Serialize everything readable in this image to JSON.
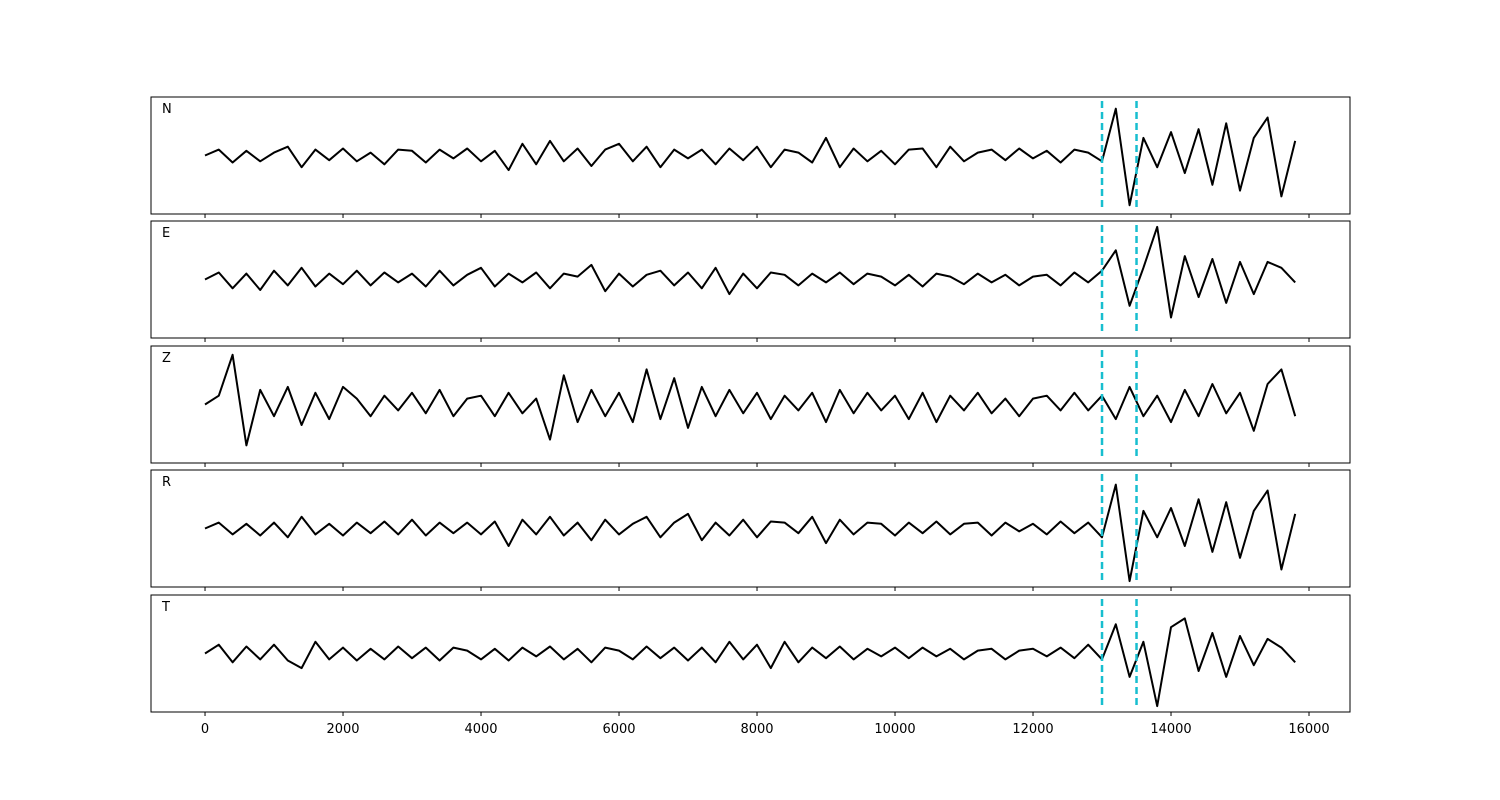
{
  "chart_data": [
    {
      "type": "line",
      "label": "N",
      "color": "#000000",
      "x": [
        0,
        200,
        400,
        600,
        800,
        1000,
        1200,
        1400,
        1600,
        1800,
        2000,
        2200,
        2400,
        2600,
        2800,
        3000,
        3200,
        3400,
        3600,
        3800,
        4000,
        4200,
        4400,
        4600,
        4800,
        5000,
        5200,
        5400,
        5600,
        5800,
        6000,
        6200,
        6400,
        6600,
        6800,
        7000,
        7200,
        7400,
        7600,
        7800,
        8000,
        8200,
        8400,
        8600,
        8800,
        9000,
        9200,
        9400,
        9600,
        9800,
        10000,
        10200,
        10400,
        10600,
        10800,
        11000,
        11200,
        11400,
        11600,
        11800,
        12000,
        12200,
        12400,
        12600,
        12800,
        13000,
        13200,
        13400,
        13600,
        13800,
        14000,
        14200,
        14400,
        14600,
        14800,
        15000,
        15200,
        15400,
        15600,
        15800
      ],
      "values": [
        0.0,
        0.1,
        -0.12,
        0.08,
        -0.1,
        0.05,
        0.15,
        -0.2,
        0.1,
        -0.08,
        0.12,
        -0.1,
        0.05,
        -0.15,
        0.1,
        0.08,
        -0.12,
        0.1,
        -0.05,
        0.12,
        -0.1,
        0.08,
        -0.25,
        0.2,
        -0.15,
        0.25,
        -0.1,
        0.12,
        -0.18,
        0.1,
        0.2,
        -0.1,
        0.15,
        -0.2,
        0.1,
        -0.05,
        0.1,
        -0.15,
        0.12,
        -0.08,
        0.15,
        -0.2,
        0.1,
        0.05,
        -0.12,
        0.3,
        -0.2,
        0.12,
        -0.1,
        0.08,
        -0.15,
        0.1,
        0.12,
        -0.2,
        0.15,
        -0.1,
        0.05,
        0.1,
        -0.08,
        0.12,
        -0.05,
        0.08,
        -0.12,
        0.1,
        0.05,
        -0.1,
        0.8,
        -0.85,
        0.3,
        -0.2,
        0.4,
        -0.3,
        0.45,
        -0.5,
        0.55,
        -0.6,
        0.3,
        0.65,
        -0.7,
        0.25
      ],
      "xlim": [
        -783,
        16594
      ],
      "ylim": [
        -1,
        1
      ],
      "xticks": [
        0,
        2000,
        4000,
        6000,
        8000,
        10000,
        12000,
        14000,
        16000
      ],
      "markers": [
        13000,
        13500
      ],
      "marker_color": "#17becf"
    },
    {
      "type": "line",
      "label": "E",
      "color": "#000000",
      "x": [
        0,
        200,
        400,
        600,
        800,
        1000,
        1200,
        1400,
        1600,
        1800,
        2000,
        2200,
        2400,
        2600,
        2800,
        3000,
        3200,
        3400,
        3600,
        3800,
        4000,
        4200,
        4400,
        4600,
        4800,
        5000,
        5200,
        5400,
        5600,
        5800,
        6000,
        6200,
        6400,
        6600,
        6800,
        7000,
        7200,
        7400,
        7600,
        7800,
        8000,
        8200,
        8400,
        8600,
        8800,
        9000,
        9200,
        9400,
        9600,
        9800,
        10000,
        10200,
        10400,
        10600,
        10800,
        11000,
        11200,
        11400,
        11600,
        11800,
        12000,
        12200,
        12400,
        12600,
        12800,
        13000,
        13200,
        13400,
        13600,
        13800,
        14000,
        14200,
        14400,
        14600,
        14800,
        15000,
        15200,
        15400,
        15600,
        15800
      ],
      "values": [
        0.0,
        0.12,
        -0.15,
        0.1,
        -0.18,
        0.15,
        -0.1,
        0.2,
        -0.12,
        0.1,
        -0.08,
        0.15,
        -0.1,
        0.12,
        -0.05,
        0.1,
        -0.12,
        0.15,
        -0.1,
        0.08,
        0.2,
        -0.12,
        0.1,
        -0.05,
        0.12,
        -0.15,
        0.1,
        0.05,
        0.25,
        -0.2,
        0.1,
        -0.12,
        0.08,
        0.15,
        -0.1,
        0.12,
        -0.15,
        0.2,
        -0.25,
        0.1,
        -0.15,
        0.12,
        0.08,
        -0.1,
        0.1,
        -0.05,
        0.12,
        -0.08,
        0.1,
        0.05,
        -0.1,
        0.08,
        -0.12,
        0.1,
        0.05,
        -0.08,
        0.1,
        -0.05,
        0.08,
        -0.1,
        0.05,
        0.08,
        -0.1,
        0.12,
        -0.05,
        0.15,
        0.5,
        -0.45,
        0.2,
        0.9,
        -0.65,
        0.4,
        -0.3,
        0.35,
        -0.4,
        0.3,
        -0.25,
        0.3,
        0.2,
        -0.05
      ],
      "xlim": [
        -783,
        16594
      ],
      "ylim": [
        -1,
        1
      ],
      "xticks": [
        0,
        2000,
        4000,
        6000,
        8000,
        10000,
        12000,
        14000,
        16000
      ],
      "markers": [
        13000,
        13500
      ],
      "marker_color": "#17becf"
    },
    {
      "type": "line",
      "label": "Z",
      "color": "#000000",
      "x": [
        0,
        200,
        400,
        600,
        800,
        1000,
        1200,
        1400,
        1600,
        1800,
        2000,
        2200,
        2400,
        2600,
        2800,
        3000,
        3200,
        3400,
        3600,
        3800,
        4000,
        4200,
        4400,
        4600,
        4800,
        5000,
        5200,
        5400,
        5600,
        5800,
        6000,
        6200,
        6400,
        6600,
        6800,
        7000,
        7200,
        7400,
        7600,
        7800,
        8000,
        8200,
        8400,
        8600,
        8800,
        9000,
        9200,
        9400,
        9600,
        9800,
        10000,
        10200,
        10400,
        10600,
        10800,
        11000,
        11200,
        11400,
        11600,
        11800,
        12000,
        12200,
        12400,
        12600,
        12800,
        13000,
        13200,
        13400,
        13600,
        13800,
        14000,
        14200,
        14400,
        14600,
        14800,
        15000,
        15200,
        15400,
        15600,
        15800
      ],
      "values": [
        0.0,
        0.15,
        0.85,
        -0.7,
        0.25,
        -0.2,
        0.3,
        -0.35,
        0.2,
        -0.25,
        0.3,
        0.1,
        -0.2,
        0.15,
        -0.1,
        0.2,
        -0.15,
        0.25,
        -0.2,
        0.1,
        0.15,
        -0.2,
        0.2,
        -0.15,
        0.1,
        -0.6,
        0.5,
        -0.3,
        0.25,
        -0.2,
        0.2,
        -0.3,
        0.6,
        -0.25,
        0.45,
        -0.4,
        0.3,
        -0.2,
        0.25,
        -0.15,
        0.2,
        -0.25,
        0.15,
        -0.1,
        0.2,
        -0.3,
        0.25,
        -0.15,
        0.2,
        -0.1,
        0.15,
        -0.25,
        0.2,
        -0.3,
        0.15,
        -0.1,
        0.2,
        -0.15,
        0.1,
        -0.2,
        0.1,
        0.15,
        -0.1,
        0.2,
        -0.1,
        0.15,
        -0.25,
        0.3,
        -0.2,
        0.15,
        -0.3,
        0.25,
        -0.2,
        0.35,
        -0.15,
        0.2,
        -0.45,
        0.35,
        0.6,
        -0.2
      ],
      "xlim": [
        -783,
        16594
      ],
      "ylim": [
        -1,
        1
      ],
      "xticks": [
        0,
        2000,
        4000,
        6000,
        8000,
        10000,
        12000,
        14000,
        16000
      ],
      "markers": [
        13000,
        13500
      ],
      "marker_color": "#17becf"
    },
    {
      "type": "line",
      "label": "R",
      "color": "#000000",
      "x": [
        0,
        200,
        400,
        600,
        800,
        1000,
        1200,
        1400,
        1600,
        1800,
        2000,
        2200,
        2400,
        2600,
        2800,
        3000,
        3200,
        3400,
        3600,
        3800,
        4000,
        4200,
        4400,
        4600,
        4800,
        5000,
        5200,
        5400,
        5600,
        5800,
        6000,
        6200,
        6400,
        6600,
        6800,
        7000,
        7200,
        7400,
        7600,
        7800,
        8000,
        8200,
        8400,
        8600,
        8800,
        9000,
        9200,
        9400,
        9600,
        9800,
        10000,
        10200,
        10400,
        10600,
        10800,
        11000,
        11200,
        11400,
        11600,
        11800,
        12000,
        12200,
        12400,
        12600,
        12800,
        13000,
        13200,
        13400,
        13600,
        13800,
        14000,
        14200,
        14400,
        14600,
        14800,
        15000,
        15200,
        15400,
        15600,
        15800
      ],
      "values": [
        0.0,
        0.1,
        -0.1,
        0.08,
        -0.12,
        0.1,
        -0.15,
        0.2,
        -0.1,
        0.08,
        -0.12,
        0.1,
        -0.08,
        0.12,
        -0.1,
        0.15,
        -0.12,
        0.1,
        -0.08,
        0.1,
        -0.1,
        0.12,
        -0.3,
        0.15,
        -0.1,
        0.2,
        -0.12,
        0.1,
        -0.2,
        0.15,
        -0.1,
        0.08,
        0.2,
        -0.15,
        0.1,
        0.25,
        -0.2,
        0.1,
        -0.12,
        0.15,
        -0.15,
        0.12,
        0.1,
        -0.08,
        0.2,
        -0.25,
        0.15,
        -0.1,
        0.1,
        0.08,
        -0.12,
        0.1,
        -0.08,
        0.12,
        -0.1,
        0.08,
        0.1,
        -0.12,
        0.1,
        -0.05,
        0.08,
        -0.1,
        0.12,
        -0.08,
        0.1,
        -0.15,
        0.75,
        -0.9,
        0.3,
        -0.15,
        0.35,
        -0.3,
        0.5,
        -0.4,
        0.45,
        -0.5,
        0.3,
        0.65,
        -0.7,
        0.25
      ],
      "xlim": [
        -783,
        16594
      ],
      "ylim": [
        -1,
        1
      ],
      "xticks": [
        0,
        2000,
        4000,
        6000,
        8000,
        10000,
        12000,
        14000,
        16000
      ],
      "markers": [
        13000,
        13500
      ],
      "marker_color": "#17becf"
    },
    {
      "type": "line",
      "label": "T",
      "color": "#000000",
      "x": [
        0,
        200,
        400,
        600,
        800,
        1000,
        1200,
        1400,
        1600,
        1800,
        2000,
        2200,
        2400,
        2600,
        2800,
        3000,
        3200,
        3400,
        3600,
        3800,
        4000,
        4200,
        4400,
        4600,
        4800,
        5000,
        5200,
        5400,
        5600,
        5800,
        6000,
        6200,
        6400,
        6600,
        6800,
        7000,
        7200,
        7400,
        7600,
        7800,
        8000,
        8200,
        8400,
        8600,
        8800,
        9000,
        9200,
        9400,
        9600,
        9800,
        10000,
        10200,
        10400,
        10600,
        10800,
        11000,
        11200,
        11400,
        11600,
        11800,
        12000,
        12200,
        12400,
        12600,
        12800,
        13000,
        13200,
        13400,
        13600,
        13800,
        14000,
        14200,
        14400,
        14600,
        14800,
        15000,
        15200,
        15400,
        15600,
        15800
      ],
      "values": [
        0.0,
        0.15,
        -0.15,
        0.12,
        -0.1,
        0.15,
        -0.12,
        -0.25,
        0.2,
        -0.1,
        0.1,
        -0.12,
        0.08,
        -0.1,
        0.12,
        -0.08,
        0.1,
        -0.12,
        0.1,
        0.05,
        -0.1,
        0.08,
        -0.12,
        0.1,
        -0.05,
        0.12,
        -0.1,
        0.08,
        -0.15,
        0.1,
        0.05,
        -0.1,
        0.12,
        -0.08,
        0.1,
        -0.12,
        0.1,
        -0.15,
        0.2,
        -0.1,
        0.15,
        -0.25,
        0.2,
        -0.15,
        0.1,
        -0.08,
        0.12,
        -0.1,
        0.08,
        -0.05,
        0.1,
        -0.08,
        0.1,
        -0.05,
        0.08,
        -0.1,
        0.05,
        0.08,
        -0.1,
        0.05,
        0.08,
        -0.05,
        0.1,
        -0.08,
        0.15,
        -0.1,
        0.5,
        -0.4,
        0.2,
        -0.9,
        0.45,
        0.6,
        -0.3,
        0.35,
        -0.4,
        0.3,
        -0.2,
        0.25,
        0.1,
        -0.15
      ],
      "xlim": [
        -783,
        16594
      ],
      "ylim": [
        -1,
        1
      ],
      "xticks": [
        0,
        2000,
        4000,
        6000,
        8000,
        10000,
        12000,
        14000,
        16000
      ],
      "markers": [
        13000,
        13500
      ],
      "marker_color": "#17becf"
    }
  ]
}
